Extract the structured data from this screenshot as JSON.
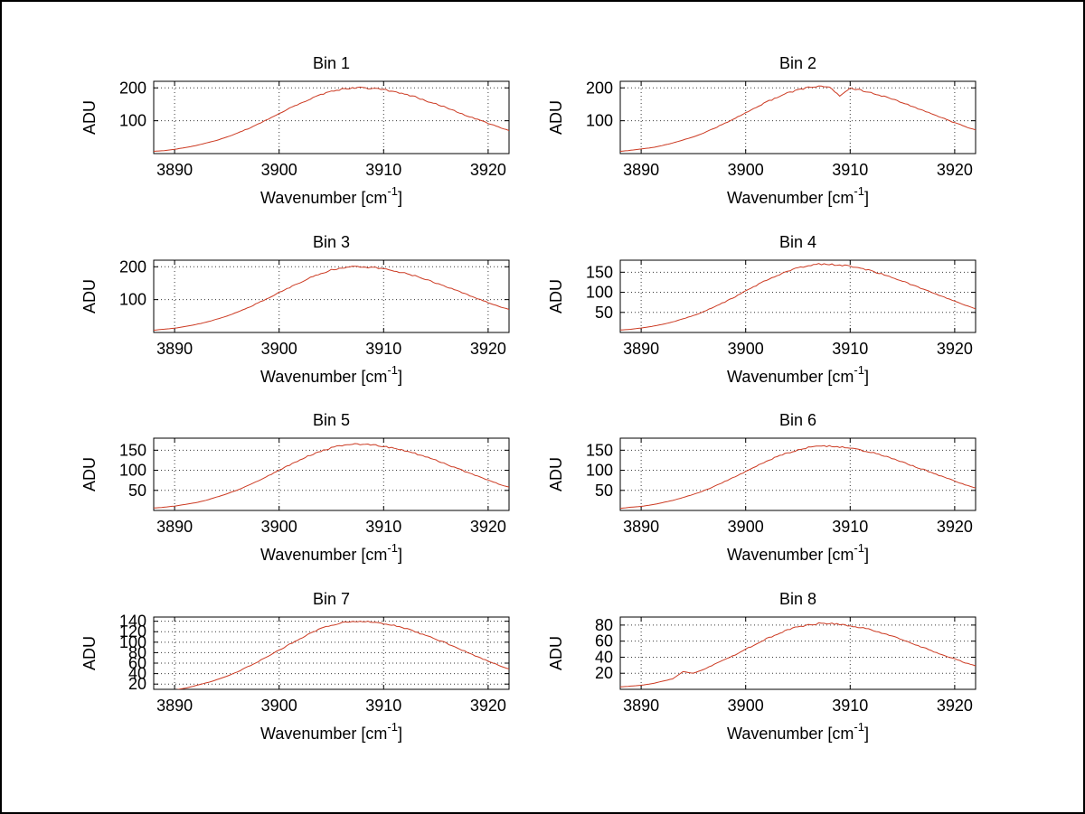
{
  "figure": {
    "background": "#ffffff",
    "frame_color": "#000000",
    "line_color": "#cc3a22",
    "grid_color": "#3a3a3a",
    "ylabel": "ADU",
    "xlabel_pre": "Wavenumber [cm",
    "xlabel_sup": "-1",
    "xlabel_post": "]"
  },
  "chart_data": [
    {
      "type": "line",
      "title": "Bin 1",
      "xlabel": "Wavenumber [cm^-1]",
      "ylabel": "ADU",
      "xlim": [
        3888,
        3922
      ],
      "ylim": [
        0,
        220
      ],
      "xticks": [
        3890,
        3900,
        3910,
        3920
      ],
      "yticks": [
        100,
        200
      ],
      "grid": true,
      "x_start": 3888,
      "x_step": 1,
      "y": [
        7,
        9,
        13,
        18,
        24,
        32,
        40,
        50,
        63,
        75,
        90,
        106,
        121,
        138,
        153,
        166,
        180,
        190,
        196,
        199,
        201,
        197,
        195,
        188,
        180,
        173,
        161,
        151,
        140,
        127,
        115,
        104,
        92,
        81,
        70
      ],
      "noise_amp": 2.5
    },
    {
      "type": "line",
      "title": "Bin 2",
      "xlabel": "Wavenumber [cm^-1]",
      "ylabel": "ADU",
      "xlim": [
        3888,
        3922
      ],
      "ylim": [
        0,
        220
      ],
      "xticks": [
        3890,
        3900,
        3910,
        3920
      ],
      "yticks": [
        100,
        200
      ],
      "grid": true,
      "x_start": 3888,
      "x_step": 1,
      "y": [
        7,
        10,
        14,
        18,
        24,
        32,
        41,
        51,
        63,
        77,
        92,
        108,
        124,
        141,
        157,
        171,
        184,
        194,
        201,
        205,
        204,
        176,
        199,
        193,
        185,
        176,
        166,
        155,
        143,
        131,
        118,
        106,
        94,
        82,
        72
      ],
      "noise_amp": 2.5
    },
    {
      "type": "line",
      "title": "Bin 3",
      "xlabel": "Wavenumber [cm^-1]",
      "ylabel": "ADU",
      "xlim": [
        3888,
        3922
      ],
      "ylim": [
        0,
        220
      ],
      "xticks": [
        3890,
        3900,
        3910,
        3920
      ],
      "yticks": [
        100,
        200
      ],
      "grid": true,
      "x_start": 3888,
      "x_step": 1,
      "y": [
        7,
        10,
        13,
        18,
        24,
        31,
        40,
        50,
        62,
        75,
        90,
        105,
        122,
        137,
        152,
        168,
        179,
        190,
        197,
        200,
        199,
        198,
        194,
        187,
        181,
        172,
        162,
        150,
        139,
        128,
        115,
        103,
        91,
        80,
        70
      ],
      "noise_amp": 2.5
    },
    {
      "type": "line",
      "title": "Bin 4",
      "xlabel": "Wavenumber [cm^-1]",
      "ylabel": "ADU",
      "xlim": [
        3888,
        3922
      ],
      "ylim": [
        0,
        180
      ],
      "xticks": [
        3890,
        3900,
        3910,
        3920
      ],
      "yticks": [
        50,
        100,
        150
      ],
      "grid": true,
      "x_start": 3888,
      "x_step": 1,
      "y": [
        6,
        8,
        11,
        15,
        20,
        26,
        34,
        42,
        52,
        64,
        76,
        89,
        103,
        117,
        130,
        142,
        152,
        161,
        167,
        170,
        170,
        168,
        165,
        160,
        154,
        146,
        138,
        128,
        118,
        108,
        98,
        88,
        78,
        68,
        59
      ],
      "noise_amp": 2
    },
    {
      "type": "line",
      "title": "Bin 5",
      "xlabel": "Wavenumber [cm^-1]",
      "ylabel": "ADU",
      "xlim": [
        3888,
        3922
      ],
      "ylim": [
        0,
        180
      ],
      "xticks": [
        3890,
        3900,
        3910,
        3920
      ],
      "yticks": [
        50,
        100,
        150
      ],
      "grid": true,
      "x_start": 3888,
      "x_step": 1,
      "y": [
        6,
        8,
        11,
        15,
        19,
        25,
        33,
        41,
        51,
        62,
        74,
        87,
        100,
        113,
        126,
        138,
        148,
        156,
        162,
        165,
        165,
        163,
        160,
        155,
        149,
        142,
        134,
        125,
        115,
        105,
        95,
        85,
        76,
        66,
        58
      ],
      "noise_amp": 2
    },
    {
      "type": "line",
      "title": "Bin 6",
      "xlabel": "Wavenumber [cm^-1]",
      "ylabel": "ADU",
      "xlim": [
        3888,
        3922
      ],
      "ylim": [
        0,
        180
      ],
      "xticks": [
        3890,
        3900,
        3910,
        3920
      ],
      "yticks": [
        50,
        100,
        150
      ],
      "grid": true,
      "x_start": 3888,
      "x_step": 1,
      "y": [
        5,
        8,
        10,
        14,
        19,
        25,
        32,
        40,
        49,
        60,
        72,
        84,
        97,
        110,
        122,
        134,
        143,
        151,
        157,
        160,
        160,
        158,
        155,
        150,
        145,
        137,
        130,
        121,
        111,
        102,
        92,
        83,
        73,
        64,
        56
      ],
      "noise_amp": 2
    },
    {
      "type": "line",
      "title": "Bin 7",
      "xlabel": "Wavenumber [cm^-1]",
      "ylabel": "ADU",
      "xlim": [
        3888,
        3922
      ],
      "ylim": [
        10,
        148
      ],
      "xticks": [
        3890,
        3900,
        3910,
        3920
      ],
      "yticks": [
        20,
        40,
        60,
        80,
        100,
        120,
        140
      ],
      "grid": true,
      "x_start": 3888,
      "x_step": 1,
      "y": [
        5,
        7,
        9,
        12,
        17,
        22,
        28,
        35,
        43,
        53,
        63,
        74,
        85,
        96,
        107,
        117,
        126,
        132,
        137,
        140,
        140,
        138,
        136,
        132,
        127,
        120,
        113,
        106,
        98,
        89,
        81,
        72,
        64,
        56,
        49
      ],
      "noise_amp": 1.5
    },
    {
      "type": "line",
      "title": "Bin 8",
      "xlabel": "Wavenumber [cm^-1]",
      "ylabel": "ADU",
      "xlim": [
        3888,
        3922
      ],
      "ylim": [
        0,
        90
      ],
      "xticks": [
        3890,
        3900,
        3910,
        3920
      ],
      "yticks": [
        20,
        40,
        60,
        80
      ],
      "grid": true,
      "x_start": 3888,
      "x_step": 1,
      "y": [
        3,
        4,
        5,
        7,
        10,
        13,
        22,
        20,
        25,
        31,
        37,
        43,
        50,
        56,
        63,
        68,
        74,
        78,
        80,
        82,
        82,
        81,
        79,
        77,
        74,
        70,
        66,
        62,
        57,
        52,
        47,
        42,
        38,
        33,
        29
      ],
      "noise_amp": 1
    }
  ]
}
